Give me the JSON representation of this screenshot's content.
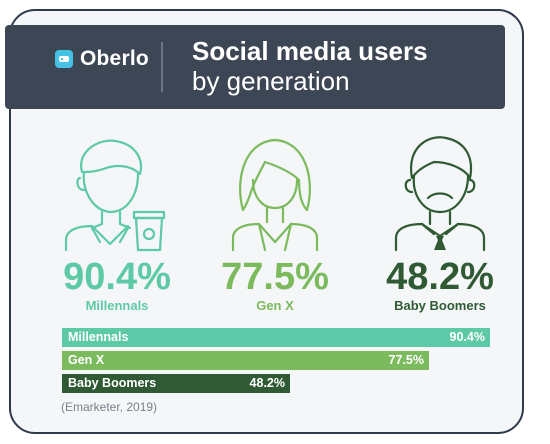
{
  "brand": {
    "logo_text": "Oberlo"
  },
  "title": {
    "line1": "Social media users",
    "line2": "by generation"
  },
  "source": "(Emarketer, 2019)",
  "colors": {
    "header_bg": "#3d4655",
    "millennials": "#5ec9a6",
    "gen_x": "#7cba5e",
    "baby_boomers": "#2f5a33"
  },
  "generations": [
    {
      "name": "Millennals",
      "pct_label": "90.4%",
      "bar_label": "90.4%",
      "icon": "millennial-person-with-coffee-icon"
    },
    {
      "name": "Gen X",
      "pct_label": "77.5%",
      "bar_label": "77.5%",
      "icon": "gen-x-woman-icon"
    },
    {
      "name": "Baby Boomers",
      "pct_label": "48.2%",
      "bar_label": "48.2%",
      "icon": "baby-boomer-man-with-tie-icon"
    }
  ],
  "chart_data": {
    "type": "bar",
    "orientation": "horizontal",
    "title": "Social media users by generation",
    "categories": [
      "Millennals",
      "Gen X",
      "Baby Boomers"
    ],
    "values": [
      90.4,
      77.5,
      48.2
    ],
    "unit": "%",
    "xlim": [
      0,
      100
    ],
    "grid": false
  }
}
